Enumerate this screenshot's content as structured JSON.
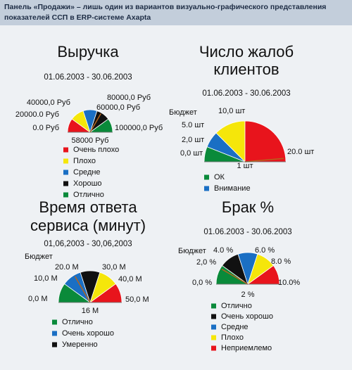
{
  "caption": "Панель «Продажи» – лишь один из вариантов визуально-графического представления показателей ССП в ERP-системе Axapta",
  "panels": [
    {
      "title": [
        "Выручка"
      ],
      "period": "01.06.2003 - 30.06.2003",
      "scale_labels": [
        "0.0 Руб",
        "20000.0 Руб",
        "40000,0 Руб",
        "80000,0 Руб",
        "60000,0 Руб",
        "100000,0 Руб"
      ],
      "needle_label": "58000 Руб",
      "bands": [
        "#e8141c",
        "#f5e60a",
        "#1a6fc4",
        "#111111",
        "#0a8a3a"
      ],
      "legend": [
        {
          "label": "Очень плохо",
          "color": "#e8141c"
        },
        {
          "label": "Плохо",
          "color": "#f5e60a"
        },
        {
          "label": "Средне",
          "color": "#1a6fc4"
        },
        {
          "label": "Хорошо",
          "color": "#111111"
        },
        {
          "label": "Отлично",
          "color": "#0a8a3a"
        }
      ]
    },
    {
      "title": [
        "Число жалоб",
        "клиентов"
      ],
      "period": "01.06.2003 - 30.06.2003",
      "budget": "Бюджет",
      "scale_labels": [
        "10,0 шт",
        "5.0 шт",
        "2,0 шт",
        "0,0 шт",
        "20.0 шт"
      ],
      "needle_label": "1 шт",
      "bands": [
        "#0a8a3a",
        "#1a6fc4",
        "#f5e60a",
        "#e8141c"
      ],
      "legend": [
        {
          "label": "ОК",
          "color": "#0a8a3a"
        },
        {
          "label": "Внимание",
          "color": "#1a6fc4"
        }
      ]
    },
    {
      "title": [
        "Время ответа",
        "сервиса (минут)"
      ],
      "period": "01,06,2003 - 30,06,2003",
      "budget": "Бюджет",
      "scale_labels": [
        "20.0 М",
        "10,0 М",
        "0,0 М",
        "30,0 М",
        "40,0 М",
        "50,0 М"
      ],
      "needle_label": "16 М",
      "bands": [
        "#0a8a3a",
        "#1a6fc4",
        "#111111",
        "#f5e60a",
        "#e8141c"
      ],
      "legend": [
        {
          "label": "Отлично",
          "color": "#0a8a3a"
        },
        {
          "label": "Очень хорошо",
          "color": "#1a6fc4"
        },
        {
          "label": "Умеренно",
          "color": "#111111"
        }
      ]
    },
    {
      "title": [
        "Брак %"
      ],
      "period": "01.06.2003 - 30.06.2003",
      "budget": "Бюджет",
      "scale_labels": [
        "4.0 %",
        "6.0 %",
        "2,0 %",
        "8.0 %",
        "0,0 %",
        "10.0%"
      ],
      "needle_label": "2 %",
      "bands": [
        "#0a8a3a",
        "#111111",
        "#1a6fc4",
        "#f5e60a",
        "#e8141c"
      ],
      "legend": [
        {
          "label": "Отлично",
          "color": "#0a8a3a"
        },
        {
          "label": "Очень хорошо",
          "color": "#111111"
        },
        {
          "label": "Средне",
          "color": "#1a6fc4"
        },
        {
          "label": "Плохо",
          "color": "#f5e60a"
        },
        {
          "label": "Неприемлемо",
          "color": "#e8141c"
        }
      ]
    }
  ]
}
